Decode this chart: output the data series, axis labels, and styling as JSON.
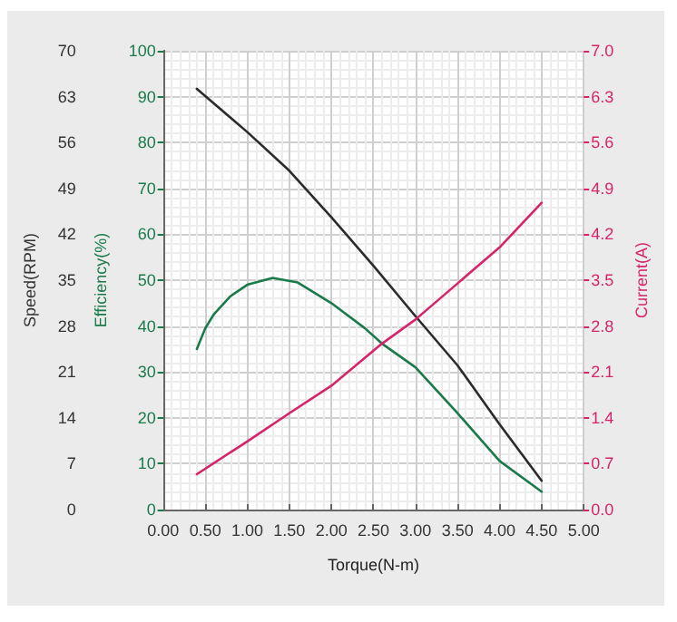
{
  "chart_data": {
    "type": "line",
    "xlabel": "Torque(N-m)",
    "ylabel": "Speed(RPM)",
    "y2label": "Current(A)",
    "y3label": "Efficiency(%)",
    "xlim": [
      0,
      5
    ],
    "xticks": [
      {
        "value": 0,
        "label": "0.00"
      },
      {
        "value": 0.5,
        "label": "0.50"
      },
      {
        "value": 1,
        "label": "1.00"
      },
      {
        "value": 1.5,
        "label": "1.50"
      },
      {
        "value": 2,
        "label": "2.00"
      },
      {
        "value": 2.5,
        "label": "2.50"
      },
      {
        "value": 3,
        "label": "3.00"
      },
      {
        "value": 3.5,
        "label": "3.50"
      },
      {
        "value": 4,
        "label": "4.00"
      },
      {
        "value": 4.5,
        "label": "4.50"
      },
      {
        "value": 5,
        "label": "5.00"
      }
    ],
    "ylim": [
      0,
      70
    ],
    "yticks": [
      0,
      7,
      14,
      21,
      28,
      35,
      42,
      49,
      56,
      63,
      70
    ],
    "y3lim": [
      0,
      100
    ],
    "y3ticks": [
      0,
      10,
      20,
      30,
      40,
      50,
      60,
      70,
      80,
      90,
      100
    ],
    "y2lim": [
      0,
      7
    ],
    "y2ticks": [
      {
        "value": 0,
        "label": "0.0"
      },
      {
        "value": 0.7,
        "label": "0.7"
      },
      {
        "value": 1.4,
        "label": "1.4"
      },
      {
        "value": 2.1,
        "label": "2.1"
      },
      {
        "value": 2.8,
        "label": "2.8"
      },
      {
        "value": 3.5,
        "label": "3.5"
      },
      {
        "value": 4.2,
        "label": "4.2"
      },
      {
        "value": 4.9,
        "label": "4.9"
      },
      {
        "value": 5.6,
        "label": "5.6"
      },
      {
        "value": 6.3,
        "label": "6.3"
      },
      {
        "value": 7,
        "label": "7.0"
      }
    ],
    "grid": true,
    "marker": "none",
    "line_style": "solid",
    "series": [
      {
        "color": "#2b2b2b",
        "axis": "y",
        "x": [
          0.4,
          1,
          1.5,
          2,
          2.5,
          3,
          3.5,
          4,
          4.5
        ],
        "values": [
          64.2,
          57.6,
          51.7,
          44.6,
          37.2,
          29.5,
          22,
          13,
          4.4
        ]
      },
      {
        "color": "#1a7a4a",
        "axis": "y3",
        "x": [
          0.4,
          0.5,
          0.6,
          0.8,
          1,
          1.3,
          1.6,
          2,
          2.4,
          2.6,
          3,
          3.5,
          4,
          4.5
        ],
        "values": [
          35,
          39.5,
          42.5,
          46.5,
          49,
          50.5,
          49.5,
          45,
          39.5,
          36.2,
          31,
          21,
          10.6,
          3.9
        ]
      },
      {
        "color": "#d6246a",
        "axis": "y2",
        "x": [
          0.4,
          1,
          1.5,
          2,
          2.6,
          3,
          3.5,
          4,
          4.5
        ],
        "values": [
          0.54,
          1.04,
          1.47,
          1.89,
          2.53,
          2.9,
          3.45,
          4,
          4.68
        ]
      }
    ]
  }
}
